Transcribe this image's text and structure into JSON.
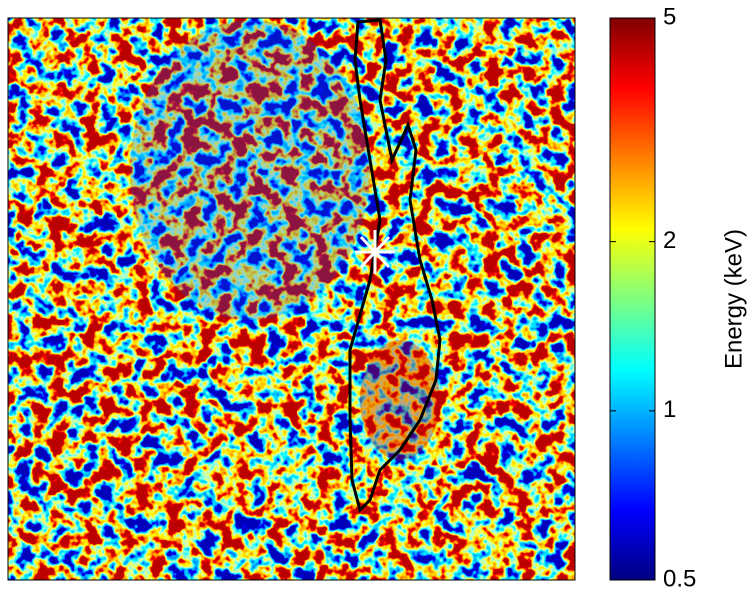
{
  "chart_data": {
    "type": "image",
    "colorbar": {
      "label": "Energy (keV)",
      "lim": [
        0.5,
        5
      ],
      "ticks": [
        0.5,
        1,
        2,
        5
      ],
      "log": true,
      "colormap": "jet"
    }
  }
}
